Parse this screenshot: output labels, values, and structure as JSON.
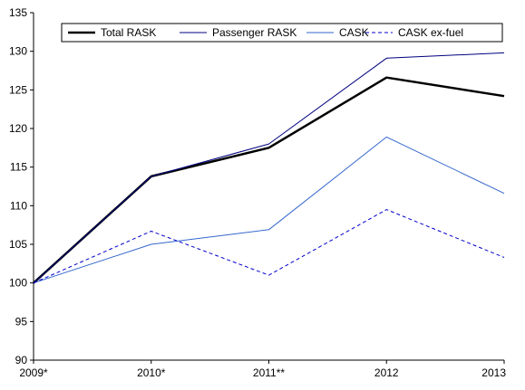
{
  "chart_data": {
    "type": "line",
    "title": "",
    "xlabel": "",
    "ylabel": "",
    "categories": [
      "2009*",
      "2010*",
      "2011**",
      "2012",
      "2013"
    ],
    "ylim": [
      90,
      135
    ],
    "yticks": [
      90,
      95,
      100,
      105,
      110,
      115,
      120,
      125,
      130,
      135
    ],
    "grid": false,
    "legend_position": "top",
    "series": [
      {
        "name": "Total RASK",
        "values": [
          100,
          113.8,
          117.5,
          126.6,
          124.2
        ],
        "color": "#000000",
        "style": "solid-thick"
      },
      {
        "name": "Passenger RASK",
        "values": [
          100,
          113.8,
          118.0,
          129.1,
          129.8
        ],
        "color": "#000080",
        "style": "solid-thin"
      },
      {
        "name": "CASK",
        "values": [
          100,
          105.0,
          106.9,
          118.9,
          111.6
        ],
        "color": "#3366cc",
        "style": "solid-thin"
      },
      {
        "name": "CASK ex-fuel",
        "values": [
          100,
          106.7,
          101.0,
          109.5,
          103.3
        ],
        "color": "#0000cc",
        "style": "dashed"
      }
    ]
  }
}
